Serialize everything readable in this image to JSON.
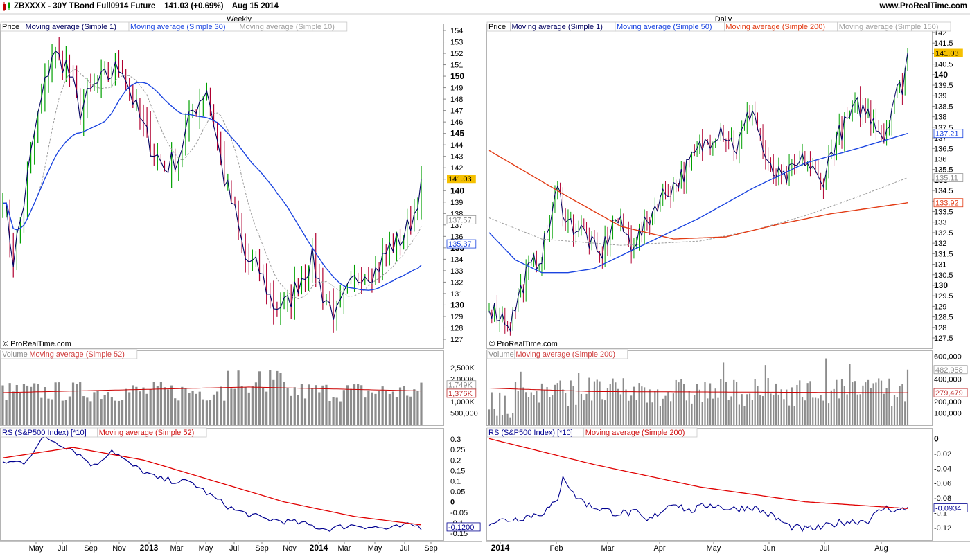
{
  "header": {
    "title": "ZBXXXX - 30Y TBond Full0914 Future",
    "last": "141.03 (+0.69%)",
    "date": "Aug 15 2014",
    "site": "www.ProRealTime.com"
  },
  "icons": {
    "app": "candlestick-logo-icon"
  },
  "colors": {
    "up": "#00a000",
    "down": "#b00030",
    "close": "#000060",
    "ma_blue": "#1a44e0",
    "ma_red": "#e23b14",
    "ma_gray": "#a0a0a0",
    "volume": "#8c8c8c",
    "rs": "#000090",
    "rs_ma": "#e00000",
    "last_badge": "#f5c000"
  },
  "panels": {
    "weekly": {
      "period_label": "Weekly",
      "copyright": "© ProRealTime.com",
      "price_legend": [
        "Price",
        "Moving average (Simple 1)",
        "Moving average (Simple 30)",
        "Moving average (Simple 10)"
      ],
      "price_ticks": [
        "154",
        "153",
        "152",
        "151",
        "150",
        "149",
        "148",
        "147",
        "146",
        "145",
        "144",
        "143",
        "142",
        "141",
        "140",
        "139",
        "138",
        "137",
        "136",
        "135",
        "134",
        "133",
        "132",
        "131",
        "130",
        "129",
        "128",
        "127"
      ],
      "price_badges": {
        "last": "141.03",
        "ma10": "137.57",
        "ma30": "135.37"
      },
      "volume_legend": [
        "Volume",
        "Moving average (Simple 52)"
      ],
      "volume_ticks": [
        "2,500K",
        "2,000K",
        "1,500K",
        "1,000K",
        "500,000"
      ],
      "volume_badges": {
        "ma": "1,749K",
        "last": "1,376K"
      },
      "rs_legend": [
        "RS (S&P500 Index) [*10]",
        "Moving average (Simple 52)"
      ],
      "rs_ticks": [
        "0.3",
        "0.25",
        "0.2",
        "0.15",
        "0.1",
        "0.05",
        "0",
        "-0.05",
        "-0.1",
        "-0.15"
      ],
      "rs_badge": "-0.1200",
      "x_labels": [
        "May",
        "Jul",
        "Sep",
        "Nov",
        "2013",
        "Mar",
        "May",
        "Jul",
        "Sep",
        "Nov",
        "2014",
        "Mar",
        "May",
        "Jul",
        "Sep"
      ]
    },
    "daily": {
      "period_label": "Daily",
      "copyright": "© ProRealTime.com",
      "price_legend": [
        "Price",
        "Moving average (Simple 1)",
        "Moving average (Simple 50)",
        "Moving average (Simple 200)",
        "Moving average (Simple 150)"
      ],
      "price_ticks": [
        "142",
        "141.5",
        "141",
        "140.5",
        "140",
        "139.5",
        "139",
        "138.5",
        "138",
        "137.5",
        "137",
        "136.5",
        "136",
        "135.5",
        "135",
        "134.5",
        "134",
        "133.5",
        "133",
        "132.5",
        "132",
        "131.5",
        "131",
        "130.5",
        "130",
        "129.5",
        "129",
        "128.5",
        "128",
        "127.5"
      ],
      "price_badges": {
        "last": "141.03",
        "ma50": "137.21",
        "ma150": "135.11",
        "ma200": "133.92"
      },
      "volume_legend": [
        "Volume",
        "Moving average (Simple 200)"
      ],
      "volume_ticks": [
        "600,000",
        "500,000",
        "400,000",
        "300,000",
        "200,000",
        "100,000"
      ],
      "volume_badges": {
        "last": "482,958",
        "ma": "279,479"
      },
      "rs_legend": [
        "RS (S&P500 Index) [*10]",
        "Moving average (Simple 200)"
      ],
      "rs_ticks": [
        "0",
        "-0.02",
        "-0.04",
        "-0.06",
        "-0.08",
        "-0.1",
        "-0.12"
      ],
      "rs_badge": "-0.0934",
      "x_labels": [
        "2014",
        "Feb",
        "Mar",
        "Apr",
        "May",
        "Jun",
        "Jul",
        "Aug"
      ]
    }
  },
  "chart_data": [
    {
      "type": "line",
      "title": "30Y TBond Weekly",
      "price_close_approx": [
        {
          "x": "2012-05",
          "y": 148
        },
        {
          "x": "2012-07",
          "y": 152
        },
        {
          "x": "2012-09",
          "y": 146
        },
        {
          "x": "2012-11",
          "y": 151
        },
        {
          "x": "2013-01",
          "y": 146
        },
        {
          "x": "2013-03",
          "y": 144
        },
        {
          "x": "2013-05",
          "y": 149
        },
        {
          "x": "2013-07",
          "y": 134
        },
        {
          "x": "2013-09",
          "y": 130
        },
        {
          "x": "2013-11",
          "y": 131
        },
        {
          "x": "2014-01",
          "y": 129
        },
        {
          "x": "2014-03",
          "y": 133
        },
        {
          "x": "2014-05",
          "y": 136
        },
        {
          "x": "2014-07",
          "y": 137
        },
        {
          "x": "2014-08",
          "y": 141.03
        }
      ],
      "ylim": [
        127,
        154
      ]
    },
    {
      "type": "line",
      "title": "30Y TBond Daily",
      "price_close_approx": [
        {
          "x": "2014-01",
          "y": 128.5
        },
        {
          "x": "2014-02",
          "y": 133.5
        },
        {
          "x": "2014-03",
          "y": 131.5
        },
        {
          "x": "2014-04",
          "y": 132.5
        },
        {
          "x": "2014-05",
          "y": 137
        },
        {
          "x": "2014-06",
          "y": 135
        },
        {
          "x": "2014-07",
          "y": 135.5
        },
        {
          "x": "2014-08",
          "y": 138
        },
        {
          "x": "2014-08-15",
          "y": 141.03
        }
      ],
      "ylim": [
        127.5,
        142
      ]
    }
  ]
}
